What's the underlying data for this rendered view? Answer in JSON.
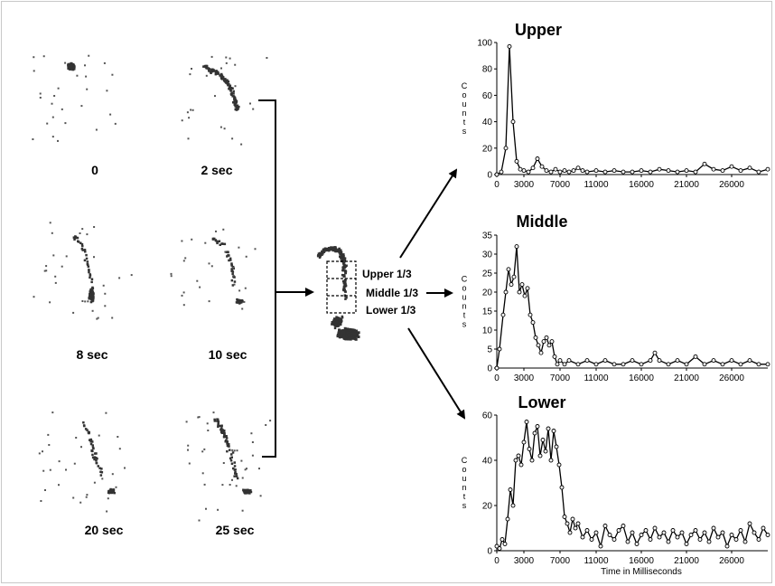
{
  "panels": [
    {
      "label": "0"
    },
    {
      "label": "2 sec"
    },
    {
      "label": "8 sec"
    },
    {
      "label": "10 sec"
    },
    {
      "label": "20 sec"
    },
    {
      "label": "25 sec"
    }
  ],
  "regions": {
    "upper": "Upper 1/3",
    "middle": "Middle 1/3",
    "lower": "Lower 1/3"
  },
  "colors": {
    "ink": "#000000",
    "dots": "#333333",
    "background": "#ffffff"
  },
  "chart_data": [
    {
      "type": "line",
      "title": "Upper",
      "ylabel": "Counts",
      "xlabel": "",
      "ylim": [
        0,
        100
      ],
      "yticks": [
        0,
        20,
        40,
        60,
        80,
        100
      ],
      "xlim": [
        0,
        30000
      ],
      "xticks": [
        0,
        3000,
        7000,
        11000,
        16000,
        21000,
        26000
      ],
      "grid": false,
      "series": [
        {
          "x": [
            0,
            500,
            1000,
            1400,
            1800,
            2200,
            2600,
            3000,
            3500,
            4000,
            4500,
            5000,
            5500,
            6000,
            6500,
            7000,
            7500,
            8000,
            8500,
            9000,
            9500,
            10000,
            11000,
            12000,
            13000,
            14000,
            15000,
            16000,
            17000,
            18000,
            19000,
            20000,
            21000,
            22000,
            23000,
            24000,
            25000,
            26000,
            27000,
            28000,
            29000,
            30000
          ],
          "values": [
            0,
            2,
            20,
            97,
            40,
            10,
            4,
            3,
            2,
            5,
            12,
            6,
            3,
            2,
            4,
            2,
            3,
            2,
            3,
            5,
            3,
            2,
            3,
            2,
            3,
            2,
            2,
            3,
            2,
            4,
            3,
            2,
            3,
            2,
            8,
            4,
            3,
            6,
            3,
            5,
            2,
            4
          ]
        }
      ]
    },
    {
      "type": "line",
      "title": "Middle",
      "ylabel": "Counts",
      "xlabel": "",
      "ylim": [
        0,
        35
      ],
      "yticks": [
        0,
        5,
        10,
        15,
        20,
        25,
        30,
        35
      ],
      "xlim": [
        0,
        30000
      ],
      "xticks": [
        0,
        3000,
        7000,
        11000,
        16000,
        21000,
        26000
      ],
      "grid": false,
      "series": [
        {
          "x": [
            0,
            300,
            700,
            1000,
            1300,
            1600,
            1900,
            2200,
            2500,
            2800,
            3100,
            3400,
            3700,
            4000,
            4300,
            4600,
            4900,
            5200,
            5500,
            5800,
            6100,
            6400,
            6700,
            7000,
            7500,
            8000,
            9000,
            10000,
            11000,
            12000,
            13000,
            14000,
            15000,
            16000,
            17000,
            17500,
            18000,
            19000,
            20000,
            21000,
            22000,
            23000,
            24000,
            25000,
            26000,
            27000,
            28000,
            29000,
            30000
          ],
          "values": [
            0,
            5,
            14,
            20,
            26,
            22,
            24,
            32,
            20,
            22,
            19,
            21,
            14,
            12,
            8,
            6,
            4,
            7,
            8,
            6,
            7,
            3,
            1,
            2,
            1,
            2,
            1,
            2,
            1,
            2,
            1,
            1,
            2,
            1,
            2,
            4,
            2,
            1,
            2,
            1,
            3,
            1,
            2,
            1,
            2,
            1,
            2,
            1,
            1
          ]
        }
      ]
    },
    {
      "type": "line",
      "title": "Lower",
      "ylabel": "Counts",
      "xlabel": "Time in Milliseconds",
      "ylim": [
        0,
        60
      ],
      "yticks": [
        0,
        20,
        40,
        60
      ],
      "xlim": [
        0,
        30000
      ],
      "xticks": [
        0,
        3000,
        7000,
        11000,
        16000,
        21000,
        26000
      ],
      "grid": false,
      "series": [
        {
          "x": [
            0,
            300,
            600,
            900,
            1200,
            1500,
            1800,
            2100,
            2400,
            2700,
            3000,
            3300,
            3600,
            3900,
            4200,
            4500,
            4800,
            5100,
            5400,
            5700,
            6000,
            6300,
            6600,
            6900,
            7200,
            7500,
            7800,
            8100,
            8400,
            8700,
            9000,
            9500,
            10000,
            10500,
            11000,
            11500,
            12000,
            12500,
            13000,
            13500,
            14000,
            14500,
            15000,
            15500,
            16000,
            16500,
            17000,
            17500,
            18000,
            18500,
            19000,
            19500,
            20000,
            20500,
            21000,
            21500,
            22000,
            22500,
            23000,
            23500,
            24000,
            24500,
            25000,
            25500,
            26000,
            26500,
            27000,
            27500,
            28000,
            28500,
            29000,
            29500,
            30000
          ],
          "values": [
            2,
            1,
            5,
            3,
            14,
            27,
            20,
            40,
            42,
            38,
            48,
            57,
            45,
            40,
            52,
            55,
            42,
            49,
            44,
            54,
            40,
            53,
            46,
            38,
            28,
            15,
            12,
            8,
            14,
            10,
            12,
            6,
            9,
            5,
            8,
            2,
            11,
            7,
            5,
            9,
            11,
            4,
            8,
            3,
            7,
            9,
            5,
            10,
            6,
            8,
            4,
            9,
            6,
            8,
            3,
            7,
            9,
            5,
            8,
            4,
            10,
            6,
            8,
            2,
            7,
            5,
            9,
            4,
            12,
            8,
            5,
            10,
            7
          ]
        }
      ]
    }
  ]
}
